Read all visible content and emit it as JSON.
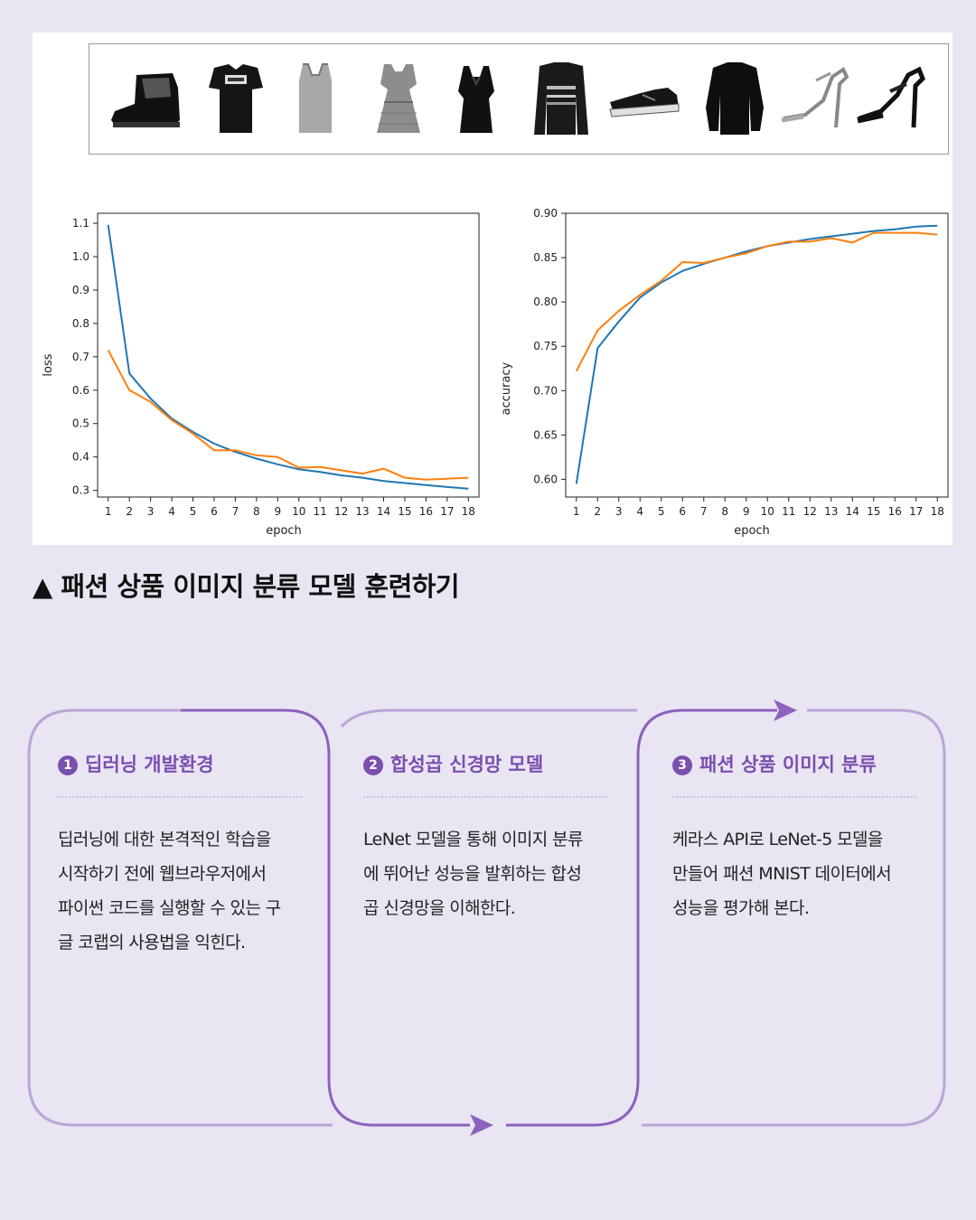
{
  "figure": {
    "items": [
      "ankle-boot",
      "tshirt",
      "tank-top",
      "dress",
      "top",
      "sweater",
      "sneaker",
      "pullover",
      "sandal",
      "sandal"
    ]
  },
  "chart_data": [
    {
      "type": "line",
      "title": "",
      "xlabel": "epoch",
      "ylabel": "loss",
      "x": [
        1,
        2,
        3,
        4,
        5,
        6,
        7,
        8,
        9,
        10,
        11,
        12,
        13,
        14,
        15,
        16,
        17,
        18
      ],
      "xlim": [
        0.5,
        18.5
      ],
      "ylim": [
        0.28,
        1.13
      ],
      "yticks": [
        0.3,
        0.4,
        0.5,
        0.6,
        0.7,
        0.8,
        0.9,
        1.0,
        1.1
      ],
      "yticklabels": [
        "0.3",
        "0.4",
        "0.5",
        "0.6",
        "0.7",
        "0.8",
        "0.9",
        "1.0",
        "1.1"
      ],
      "grid": false,
      "series": [
        {
          "color": "#1f77b4",
          "values": [
            1.095,
            0.65,
            0.575,
            0.515,
            0.475,
            0.44,
            0.415,
            0.395,
            0.378,
            0.363,
            0.355,
            0.345,
            0.338,
            0.328,
            0.322,
            0.316,
            0.31,
            0.305
          ]
        },
        {
          "color": "#ff7f0e",
          "values": [
            0.72,
            0.6,
            0.565,
            0.51,
            0.47,
            0.42,
            0.42,
            0.405,
            0.4,
            0.368,
            0.37,
            0.36,
            0.35,
            0.365,
            0.338,
            0.332,
            0.335,
            0.338
          ]
        }
      ]
    },
    {
      "type": "line",
      "title": "",
      "xlabel": "epoch",
      "ylabel": "accuracy",
      "x": [
        1,
        2,
        3,
        4,
        5,
        6,
        7,
        8,
        9,
        10,
        11,
        12,
        13,
        14,
        15,
        16,
        17,
        18
      ],
      "xlim": [
        0.5,
        18.5
      ],
      "ylim": [
        0.58,
        0.9
      ],
      "yticks": [
        0.6,
        0.65,
        0.7,
        0.75,
        0.8,
        0.85,
        0.9
      ],
      "yticklabels": [
        "0.60",
        "0.65",
        "0.70",
        "0.75",
        "0.80",
        "0.85",
        "0.90"
      ],
      "grid": false,
      "series": [
        {
          "color": "#1f77b4",
          "values": [
            0.595,
            0.748,
            0.778,
            0.805,
            0.822,
            0.835,
            0.843,
            0.85,
            0.857,
            0.863,
            0.867,
            0.871,
            0.874,
            0.877,
            0.88,
            0.882,
            0.885,
            0.886
          ]
        },
        {
          "color": "#ff7f0e",
          "values": [
            0.722,
            0.768,
            0.79,
            0.808,
            0.824,
            0.845,
            0.844,
            0.85,
            0.855,
            0.863,
            0.868,
            0.868,
            0.872,
            0.867,
            0.878,
            0.878,
            0.878,
            0.876
          ]
        }
      ]
    }
  ],
  "caption": {
    "marker": "▲",
    "text": "패션 상품 이미지 분류 모델 훈련하기"
  },
  "flow": {
    "accent": "#7b4fae",
    "line": "#b9a6d6",
    "cards": [
      {
        "num": "1",
        "title": "딥러닝 개발환경",
        "lines": [
          "딥러닝에 대한 본격적인 학습을",
          "시작하기 전에 웹브라우저에서",
          "파이썬 코드를 실행할 수 있는 구",
          "글 코랩의 사용법을 익힌다."
        ]
      },
      {
        "num": "2",
        "title": "합성곱 신경망 모델",
        "lines": [
          "LeNet 모델을 통해 이미지 분류",
          "에 뛰어난 성능을 발휘하는 합성",
          "곱 신경망을 이해한다."
        ]
      },
      {
        "num": "3",
        "title": "패션 상품 이미지 분류",
        "lines": [
          "케라스 API로 LeNet-5 모델을",
          "만들어 패션 MNIST 데이터에서",
          "성능을 평가해 본다."
        ]
      }
    ]
  }
}
